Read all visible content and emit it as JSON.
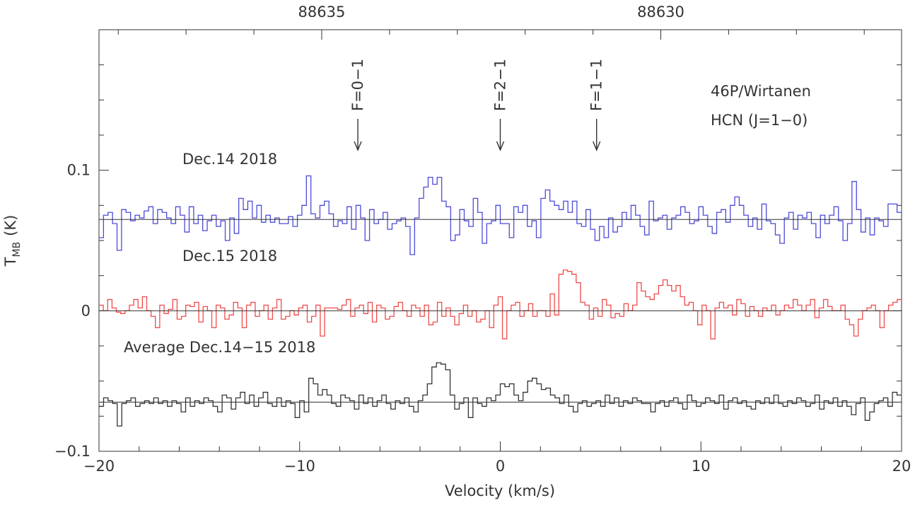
{
  "chart_data": {
    "type": "line",
    "step": true,
    "title": "",
    "xlabel": "Velocity (km/s)",
    "ylabel_main": "T",
    "ylabel_sub": "MB",
    "ylabel_unit": "(K)",
    "xlim": [
      -20,
      20
    ],
    "ylim": [
      -0.1,
      0.2
    ],
    "x_ticks": [
      -20,
      -10,
      0,
      10,
      20
    ],
    "x_tick_labels": [
      "−20",
      "−10",
      "0",
      "10",
      "20"
    ],
    "y_ticks": [
      -0.1,
      0,
      0.1
    ],
    "y_tick_labels": [
      "−0.1",
      "0",
      "0.1"
    ],
    "top_axis_ticks": [
      {
        "velocity": -8.9,
        "label": "88635"
      },
      {
        "velocity": 8.0,
        "label": "88630"
      }
    ],
    "grid": false,
    "annotations": {
      "object": "46P/Wirtanen",
      "molecule": "HCN (J=1−0)",
      "lines": [
        {
          "label": "F=0−1",
          "velocity": -7.1
        },
        {
          "label": "F=2−1",
          "velocity": 0.0
        },
        {
          "label": "F=1−1",
          "velocity": 4.8
        }
      ]
    },
    "series": [
      {
        "name": "Dec.14 2018",
        "color": "#4b4bd9",
        "baseline": 0.065,
        "x_start": -20,
        "x_end": 20,
        "values": [
          0.052,
          0.068,
          0.07,
          0.062,
          0.043,
          0.072,
          0.07,
          0.064,
          0.068,
          0.066,
          0.071,
          0.074,
          0.062,
          0.072,
          0.07,
          0.066,
          0.062,
          0.074,
          0.068,
          0.056,
          0.074,
          0.062,
          0.068,
          0.057,
          0.064,
          0.068,
          0.06,
          0.064,
          0.05,
          0.066,
          0.055,
          0.08,
          0.072,
          0.078,
          0.066,
          0.075,
          0.063,
          0.068,
          0.063,
          0.066,
          0.062,
          0.062,
          0.067,
          0.06,
          0.068,
          0.075,
          0.096,
          0.069,
          0.066,
          0.075,
          0.078,
          0.069,
          0.06,
          0.064,
          0.062,
          0.074,
          0.058,
          0.075,
          0.066,
          0.05,
          0.072,
          0.062,
          0.065,
          0.07,
          0.058,
          0.062,
          0.064,
          0.066,
          0.06,
          0.04,
          0.066,
          0.08,
          0.088,
          0.095,
          0.09,
          0.095,
          0.078,
          0.074,
          0.05,
          0.054,
          0.072,
          0.064,
          0.06,
          0.08,
          0.07,
          0.048,
          0.062,
          0.064,
          0.075,
          0.062,
          0.062,
          0.052,
          0.074,
          0.07,
          0.075,
          0.06,
          0.064,
          0.052,
          0.08,
          0.086,
          0.078,
          0.075,
          0.072,
          0.078,
          0.07,
          0.078,
          0.062,
          0.06,
          0.072,
          0.058,
          0.05,
          0.06,
          0.052,
          0.066,
          0.056,
          0.06,
          0.07,
          0.065,
          0.075,
          0.068,
          0.06,
          0.054,
          0.078,
          0.064,
          0.066,
          0.068,
          0.058,
          0.066,
          0.068,
          0.074,
          0.07,
          0.062,
          0.064,
          0.074,
          0.068,
          0.06,
          0.055,
          0.07,
          0.072,
          0.063,
          0.075,
          0.081,
          0.075,
          0.068,
          0.06,
          0.066,
          0.058,
          0.076,
          0.064,
          0.062,
          0.054,
          0.048,
          0.066,
          0.07,
          0.058,
          0.068,
          0.066,
          0.07,
          0.062,
          0.052,
          0.068,
          0.062,
          0.068,
          0.074,
          0.064,
          0.05,
          0.062,
          0.092,
          0.072,
          0.056,
          0.066,
          0.054,
          0.066,
          0.064,
          0.06,
          0.076,
          0.076,
          0.07
        ]
      },
      {
        "name": "Dec.15 2018",
        "color": "#ef4b4b",
        "baseline": 0.0,
        "x_start": -20,
        "x_end": 20,
        "values": [
          0.004,
          0.0,
          0.008,
          0.002,
          -0.001,
          -0.002,
          0.0,
          0.004,
          0.008,
          0.002,
          0.01,
          0.0,
          -0.004,
          -0.012,
          0.004,
          -0.002,
          0.001,
          0.008,
          -0.006,
          -0.004,
          0.004,
          0.003,
          0.006,
          -0.008,
          0.003,
          0.0,
          -0.012,
          0.004,
          0.002,
          -0.006,
          -0.003,
          0.006,
          0.002,
          -0.012,
          0.004,
          0.006,
          -0.004,
          0.0,
          0.004,
          -0.006,
          0.002,
          0.008,
          -0.006,
          -0.004,
          0.0,
          -0.003,
          0.002,
          0.004,
          -0.008,
          -0.004,
          0.004,
          -0.018,
          0.002,
          0.002,
          0.002,
          0.001,
          0.004,
          0.008,
          -0.004,
          0.002,
          0.004,
          -0.002,
          0.006,
          -0.008,
          0.004,
          0.002,
          -0.006,
          -0.004,
          0.003,
          0.006,
          0.0,
          -0.004,
          0.004,
          0.002,
          -0.004,
          0.004,
          -0.01,
          -0.008,
          0.006,
          -0.004,
          0.002,
          -0.004,
          -0.01,
          -0.002,
          0.004,
          -0.004,
          0.0,
          -0.008,
          -0.006,
          0.0,
          -0.012,
          0.004,
          0.01,
          -0.02,
          0.0,
          0.004,
          0.006,
          -0.004,
          0.0,
          0.005,
          -0.004,
          0.0,
          0.0,
          -0.004,
          0.012,
          -0.003,
          0.026,
          0.029,
          0.028,
          0.026,
          0.02,
          0.006,
          0.004,
          -0.006,
          0.002,
          -0.004,
          0.008,
          0.004,
          -0.005,
          -0.002,
          -0.004,
          0.005,
          0.0,
          0.004,
          0.02,
          0.014,
          0.01,
          0.008,
          0.012,
          0.018,
          0.022,
          0.018,
          0.014,
          0.018,
          0.01,
          0.004,
          0.006,
          0.0,
          -0.01,
          0.004,
          0.0,
          -0.02,
          0.002,
          0.006,
          0.002,
          0.004,
          -0.003,
          0.008,
          0.005,
          -0.004,
          0.003,
          0.0,
          -0.004,
          0.002,
          0.0,
          0.004,
          -0.003,
          0.0,
          0.004,
          0.002,
          0.008,
          0.004,
          0.0,
          0.004,
          0.008,
          -0.005,
          0.002,
          0.008,
          0.003,
          0.0,
          0.0,
          0.004,
          -0.006,
          -0.01,
          -0.018,
          -0.006,
          0.0,
          0.002,
          0.004,
          0.0,
          -0.012,
          0.0,
          0.004,
          0.006,
          0.008
        ]
      },
      {
        "name": "Average Dec.14−15 2018",
        "color": "#333333",
        "baseline": -0.065,
        "x_start": -20,
        "x_end": 20,
        "values": [
          -0.068,
          -0.062,
          -0.064,
          -0.066,
          -0.082,
          -0.066,
          -0.064,
          -0.062,
          -0.068,
          -0.066,
          -0.064,
          -0.066,
          -0.062,
          -0.066,
          -0.064,
          -0.068,
          -0.064,
          -0.066,
          -0.072,
          -0.062,
          -0.068,
          -0.064,
          -0.066,
          -0.062,
          -0.064,
          -0.068,
          -0.072,
          -0.06,
          -0.062,
          -0.07,
          -0.062,
          -0.058,
          -0.066,
          -0.06,
          -0.068,
          -0.062,
          -0.058,
          -0.066,
          -0.068,
          -0.062,
          -0.068,
          -0.064,
          -0.066,
          -0.076,
          -0.064,
          -0.072,
          -0.048,
          -0.052,
          -0.06,
          -0.056,
          -0.06,
          -0.066,
          -0.068,
          -0.06,
          -0.062,
          -0.064,
          -0.07,
          -0.06,
          -0.066,
          -0.062,
          -0.068,
          -0.064,
          -0.06,
          -0.066,
          -0.07,
          -0.064,
          -0.066,
          -0.062,
          -0.068,
          -0.072,
          -0.064,
          -0.06,
          -0.052,
          -0.04,
          -0.037,
          -0.038,
          -0.042,
          -0.06,
          -0.07,
          -0.066,
          -0.062,
          -0.076,
          -0.062,
          -0.066,
          -0.068,
          -0.062,
          -0.064,
          -0.06,
          -0.052,
          -0.054,
          -0.052,
          -0.06,
          -0.064,
          -0.058,
          -0.05,
          -0.048,
          -0.052,
          -0.056,
          -0.055,
          -0.06,
          -0.062,
          -0.066,
          -0.06,
          -0.068,
          -0.072,
          -0.066,
          -0.064,
          -0.068,
          -0.066,
          -0.064,
          -0.068,
          -0.06,
          -0.066,
          -0.062,
          -0.068,
          -0.064,
          -0.066,
          -0.062,
          -0.064,
          -0.066,
          -0.066,
          -0.072,
          -0.066,
          -0.064,
          -0.068,
          -0.064,
          -0.062,
          -0.066,
          -0.07,
          -0.06,
          -0.064,
          -0.068,
          -0.066,
          -0.062,
          -0.064,
          -0.066,
          -0.06,
          -0.07,
          -0.064,
          -0.062,
          -0.066,
          -0.064,
          -0.068,
          -0.07,
          -0.064,
          -0.066,
          -0.062,
          -0.066,
          -0.06,
          -0.066,
          -0.068,
          -0.064,
          -0.066,
          -0.062,
          -0.064,
          -0.068,
          -0.066,
          -0.06,
          -0.07,
          -0.064,
          -0.066,
          -0.062,
          -0.068,
          -0.064,
          -0.068,
          -0.074,
          -0.066,
          -0.062,
          -0.078,
          -0.072,
          -0.066,
          -0.064,
          -0.062,
          -0.068,
          -0.058,
          -0.06
        ]
      }
    ]
  }
}
